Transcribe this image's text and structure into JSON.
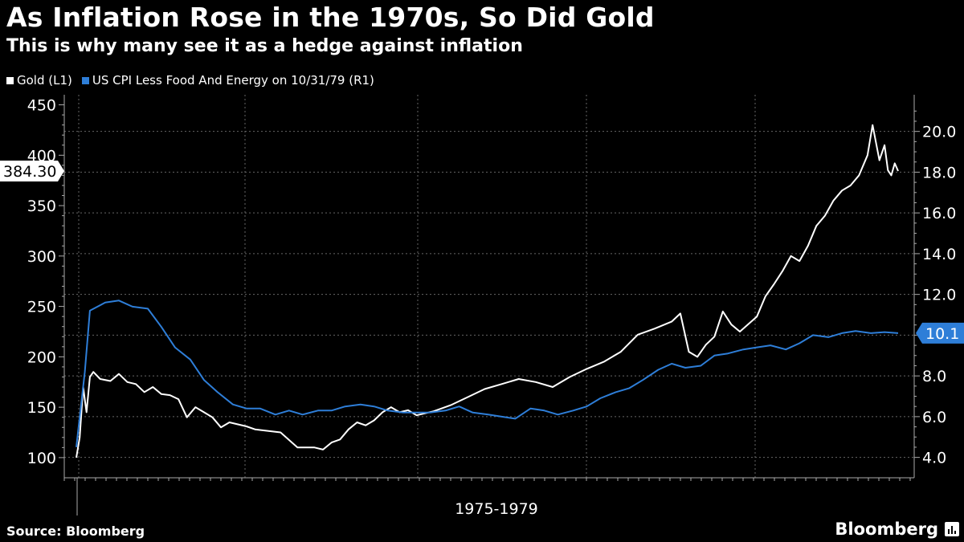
{
  "header": {
    "title": "As Inflation Rose in the 1970s, So Did Gold",
    "subtitle": "This is why many see it as a hedge against inflation"
  },
  "legend": [
    {
      "label": "Gold (L1)",
      "color": "#ffffff"
    },
    {
      "label": "US CPI Less Food And Energy on 10/31/79 (R1)",
      "color": "#2e7ed8"
    }
  ],
  "footer": {
    "source": "Source: Bloomberg",
    "brand": "Bloomberg"
  },
  "chart_data": {
    "type": "line",
    "title": "As Inflation Rose in the 1970s, So Did Gold",
    "xlabel": "1975-1979",
    "x_range": [
      1975.0,
      1979.83
    ],
    "left_axis": {
      "ticks": [
        "100",
        "150",
        "200",
        "250",
        "300",
        "350",
        "400",
        "450"
      ],
      "range": [
        80,
        460
      ]
    },
    "right_axis": {
      "ticks": [
        "4.0",
        "6.0",
        "8.0",
        "10.0",
        "12.0",
        "14.0",
        "16.0",
        "18.0",
        "20.0"
      ],
      "range": [
        3.0,
        21.8
      ]
    },
    "last_value_labels": {
      "gold": "384.30",
      "cpi": "10.1"
    },
    "series": [
      {
        "name": "Gold (L1)",
        "axis": "left",
        "color": "#ffffff",
        "x": [
          1975.0,
          1975.02,
          1975.04,
          1975.06,
          1975.08,
          1975.1,
          1975.14,
          1975.2,
          1975.25,
          1975.3,
          1975.35,
          1975.4,
          1975.45,
          1975.5,
          1975.55,
          1975.6,
          1975.65,
          1975.7,
          1975.75,
          1975.8,
          1975.85,
          1975.9,
          1975.95,
          1976.0,
          1976.05,
          1976.1,
          1976.2,
          1976.3,
          1976.4,
          1976.45,
          1976.5,
          1976.55,
          1976.6,
          1976.65,
          1976.7,
          1976.75,
          1976.8,
          1976.85,
          1976.9,
          1976.95,
          1977.0,
          1977.1,
          1977.2,
          1977.3,
          1977.4,
          1977.5,
          1977.6,
          1977.7,
          1977.8,
          1977.9,
          1978.0,
          1978.1,
          1978.2,
          1978.3,
          1978.4,
          1978.5,
          1978.55,
          1978.6,
          1978.65,
          1978.7,
          1978.75,
          1978.8,
          1978.85,
          1978.9,
          1979.0,
          1979.05,
          1979.1,
          1979.15,
          1979.2,
          1979.25,
          1979.3,
          1979.35,
          1979.4,
          1979.45,
          1979.5,
          1979.55,
          1979.6,
          1979.65,
          1979.68,
          1979.72,
          1979.75,
          1979.77,
          1979.79,
          1979.81,
          1979.83
        ],
        "values": [
          100,
          120,
          170,
          145,
          180,
          185,
          178,
          176,
          183,
          175,
          173,
          165,
          170,
          163,
          162,
          158,
          140,
          150,
          145,
          140,
          130,
          135,
          133,
          131,
          128,
          127,
          125,
          110,
          110,
          108,
          115,
          118,
          128,
          135,
          132,
          137,
          145,
          150,
          145,
          147,
          142,
          146,
          152,
          160,
          168,
          173,
          178,
          175,
          170,
          180,
          188,
          195,
          205,
          222,
          228,
          235,
          243,
          205,
          200,
          212,
          220,
          245,
          232,
          225,
          240,
          260,
          272,
          285,
          300,
          295,
          310,
          330,
          340,
          355,
          365,
          370,
          380,
          400,
          430,
          395,
          410,
          385,
          380,
          392,
          384.3
        ]
      },
      {
        "name": "US CPI Less Food And Energy on 10/31/79 (R1)",
        "axis": "right",
        "color": "#2e7ed8",
        "x": [
          1975.0,
          1975.05,
          1975.08,
          1975.17,
          1975.25,
          1975.33,
          1975.42,
          1975.5,
          1975.58,
          1975.67,
          1975.75,
          1975.83,
          1975.92,
          1976.0,
          1976.08,
          1976.17,
          1976.25,
          1976.33,
          1976.42,
          1976.5,
          1976.58,
          1976.67,
          1976.75,
          1976.83,
          1976.92,
          1977.0,
          1977.08,
          1977.17,
          1977.25,
          1977.33,
          1977.42,
          1977.5,
          1977.58,
          1977.67,
          1977.75,
          1977.83,
          1977.92,
          1978.0,
          1978.08,
          1978.17,
          1978.25,
          1978.33,
          1978.42,
          1978.5,
          1978.58,
          1978.67,
          1978.75,
          1978.83,
          1978.92,
          1979.0,
          1979.08,
          1979.17,
          1979.25,
          1979.33,
          1979.42,
          1979.5,
          1979.58,
          1979.67,
          1979.75,
          1979.83
        ],
        "values": [
          4.5,
          8.2,
          11.2,
          11.6,
          11.7,
          11.4,
          11.3,
          10.4,
          9.4,
          8.8,
          7.8,
          7.2,
          6.6,
          6.4,
          6.4,
          6.1,
          6.3,
          6.1,
          6.3,
          6.3,
          6.5,
          6.6,
          6.5,
          6.3,
          6.2,
          6.2,
          6.2,
          6.3,
          6.5,
          6.2,
          6.1,
          6.0,
          5.9,
          6.4,
          6.3,
          6.1,
          6.3,
          6.5,
          6.9,
          7.2,
          7.4,
          7.8,
          8.3,
          8.6,
          8.4,
          8.5,
          9.0,
          9.1,
          9.3,
          9.4,
          9.5,
          9.3,
          9.6,
          10.0,
          9.9,
          10.1,
          10.2,
          10.1,
          10.15,
          10.1
        ]
      }
    ]
  }
}
